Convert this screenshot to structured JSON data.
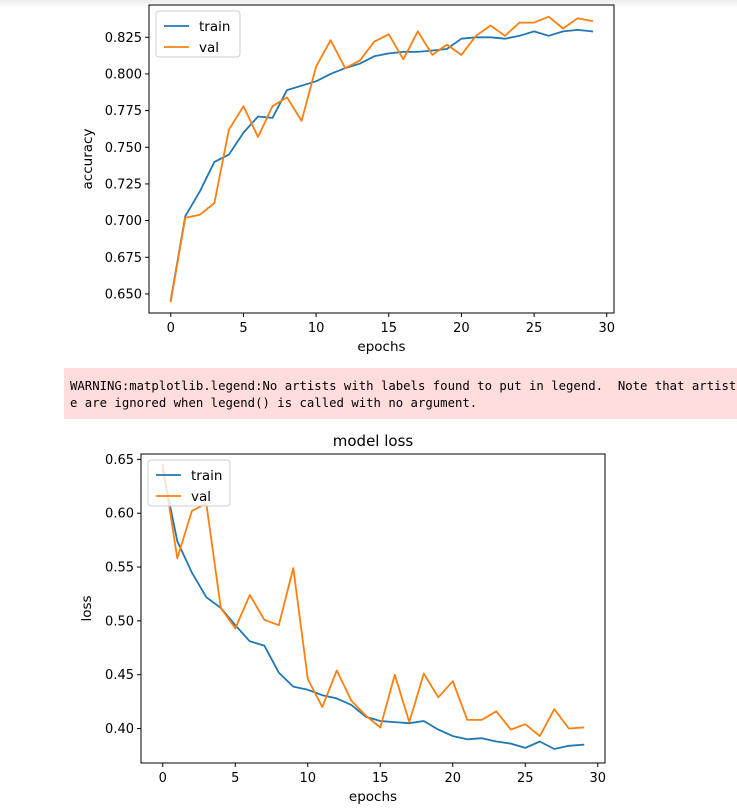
{
  "warning": {
    "line1": "WARNING:matplotlib.legend:No artists with labels found to put in legend.  Note that artists whose label start with an underscor",
    "line2": "e are ignored when legend() is called with no argument."
  },
  "colors": {
    "train": "#1f77b4",
    "val": "#ff7f0e"
  },
  "chart_data": [
    {
      "type": "line",
      "title": "",
      "xlabel": "epochs",
      "ylabel": "accuracy",
      "xlim": [
        -1.5,
        30.5
      ],
      "ylim": [
        0.637,
        0.847
      ],
      "xticks": [
        0,
        5,
        10,
        15,
        20,
        25,
        30
      ],
      "yticks": [
        0.65,
        0.675,
        0.7,
        0.725,
        0.75,
        0.775,
        0.8,
        0.825
      ],
      "ytick_labels": [
        "0.650",
        "0.675",
        "0.700",
        "0.725",
        "0.750",
        "0.775",
        "0.800",
        "0.825"
      ],
      "legend": "upper-left",
      "grid": false,
      "x": [
        0,
        1,
        2,
        3,
        4,
        5,
        6,
        7,
        8,
        9,
        10,
        11,
        12,
        13,
        14,
        15,
        16,
        17,
        18,
        19,
        20,
        21,
        22,
        23,
        24,
        25,
        26,
        27,
        28,
        29
      ],
      "series": [
        {
          "name": "train",
          "values": [
            0.646,
            0.703,
            0.72,
            0.74,
            0.745,
            0.76,
            0.771,
            0.77,
            0.789,
            0.792,
            0.795,
            0.8,
            0.804,
            0.807,
            0.812,
            0.814,
            0.815,
            0.815,
            0.816,
            0.817,
            0.824,
            0.825,
            0.825,
            0.824,
            0.826,
            0.829,
            0.826,
            0.829,
            0.83,
            0.829
          ]
        },
        {
          "name": "val",
          "values": [
            0.645,
            0.702,
            0.704,
            0.712,
            0.762,
            0.778,
            0.757,
            0.778,
            0.784,
            0.768,
            0.805,
            0.823,
            0.804,
            0.809,
            0.822,
            0.827,
            0.81,
            0.829,
            0.813,
            0.82,
            0.813,
            0.826,
            0.833,
            0.826,
            0.835,
            0.835,
            0.839,
            0.831,
            0.838,
            0.836
          ]
        }
      ]
    },
    {
      "type": "line",
      "title": "model loss",
      "xlabel": "epochs",
      "ylabel": "loss",
      "xlim": [
        -1.5,
        30.5
      ],
      "ylim": [
        0.368,
        0.655
      ],
      "xticks": [
        0,
        5,
        10,
        15,
        20,
        25,
        30
      ],
      "yticks": [
        0.4,
        0.45,
        0.5,
        0.55,
        0.6,
        0.65
      ],
      "ytick_labels": [
        "0.40",
        "0.45",
        "0.50",
        "0.55",
        "0.60",
        "0.65"
      ],
      "legend": "upper-left",
      "grid": false,
      "x": [
        0,
        1,
        2,
        3,
        4,
        5,
        6,
        7,
        8,
        9,
        10,
        11,
        12,
        13,
        14,
        15,
        16,
        17,
        18,
        19,
        20,
        21,
        22,
        23,
        24,
        25,
        26,
        27,
        28,
        29
      ],
      "series": [
        {
          "name": "train",
          "values": [
            0.64,
            0.574,
            0.545,
            0.522,
            0.512,
            0.496,
            0.481,
            0.477,
            0.452,
            0.439,
            0.436,
            0.431,
            0.428,
            0.422,
            0.411,
            0.407,
            0.406,
            0.405,
            0.407,
            0.399,
            0.393,
            0.39,
            0.391,
            0.388,
            0.386,
            0.382,
            0.388,
            0.381,
            0.384,
            0.385
          ]
        },
        {
          "name": "val",
          "values": [
            0.645,
            0.558,
            0.602,
            0.609,
            0.512,
            0.493,
            0.524,
            0.501,
            0.496,
            0.549,
            0.446,
            0.42,
            0.454,
            0.426,
            0.412,
            0.401,
            0.45,
            0.406,
            0.451,
            0.429,
            0.444,
            0.408,
            0.408,
            0.416,
            0.399,
            0.404,
            0.393,
            0.418,
            0.4,
            0.401
          ]
        }
      ]
    }
  ]
}
